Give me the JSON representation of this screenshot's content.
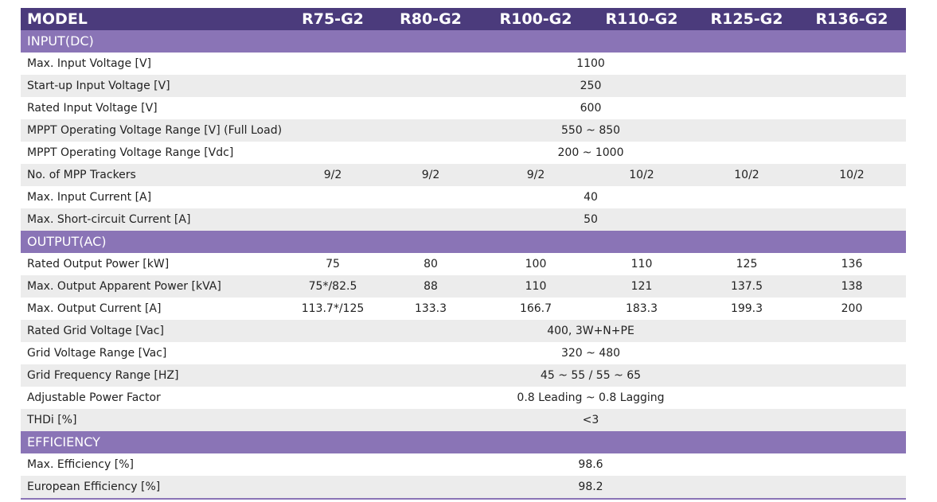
{
  "header": {
    "label": "MODEL",
    "models": [
      "R75-G2",
      "R80-G2",
      "R100-G2",
      "R110-G2",
      "R125-G2",
      "R136-G2"
    ]
  },
  "sections": [
    {
      "title": "INPUT(DC)",
      "rows": [
        {
          "label": "Max. Input Voltage [V]",
          "values": [
            "1100"
          ]
        },
        {
          "label": "Start-up Input Voltage [V]",
          "values": [
            "250"
          ]
        },
        {
          "label": "Rated Input Voltage [V]",
          "values": [
            "600"
          ]
        },
        {
          "label": "MPPT Operating Voltage Range [V] (Full Load)",
          "values": [
            "550 ~ 850"
          ]
        },
        {
          "label": "MPPT Operating Voltage Range [Vdc]",
          "values": [
            "200 ~ 1000"
          ]
        },
        {
          "label": "No. of MPP Trackers",
          "values": [
            "9/2",
            "9/2",
            "9/2",
            "10/2",
            "10/2",
            "10/2"
          ]
        },
        {
          "label": "Max. Input Current [A]",
          "values": [
            "40"
          ]
        },
        {
          "label": "Max. Short-circuit Current [A]",
          "values": [
            "50"
          ]
        }
      ]
    },
    {
      "title": "OUTPUT(AC)",
      "rows": [
        {
          "label": "Rated Output Power [kW]",
          "values": [
            "75",
            "80",
            "100",
            "110",
            "125",
            "136"
          ]
        },
        {
          "label": "Max. Output Apparent Power [kVA]",
          "values": [
            "75*/82.5",
            "88",
            "110",
            "121",
            "137.5",
            "138"
          ]
        },
        {
          "label": "Max. Output Current [A]",
          "values": [
            "113.7*/125",
            "133.3",
            "166.7",
            "183.3",
            "199.3",
            "200"
          ]
        },
        {
          "label": "Rated Grid Voltage [Vac]",
          "values": [
            "400, 3W+N+PE"
          ]
        },
        {
          "label": "Grid Voltage Range [Vac]",
          "values": [
            "320 ~ 480"
          ]
        },
        {
          "label": "Grid Frequency Range [HZ]",
          "values": [
            "45 ~ 55 / 55 ~ 65"
          ]
        },
        {
          "label": "Adjustable Power Factor",
          "values": [
            "0.8 Leading ~ 0.8 Lagging"
          ]
        },
        {
          "label": "THDi [%]",
          "values": [
            "<3"
          ]
        }
      ]
    },
    {
      "title": "EFFICIENCY",
      "rows": [
        {
          "label": "Max. Efficiency [%]",
          "values": [
            "98.6"
          ]
        },
        {
          "label": "European Efficiency [%]",
          "values": [
            "98.2"
          ]
        }
      ]
    }
  ]
}
